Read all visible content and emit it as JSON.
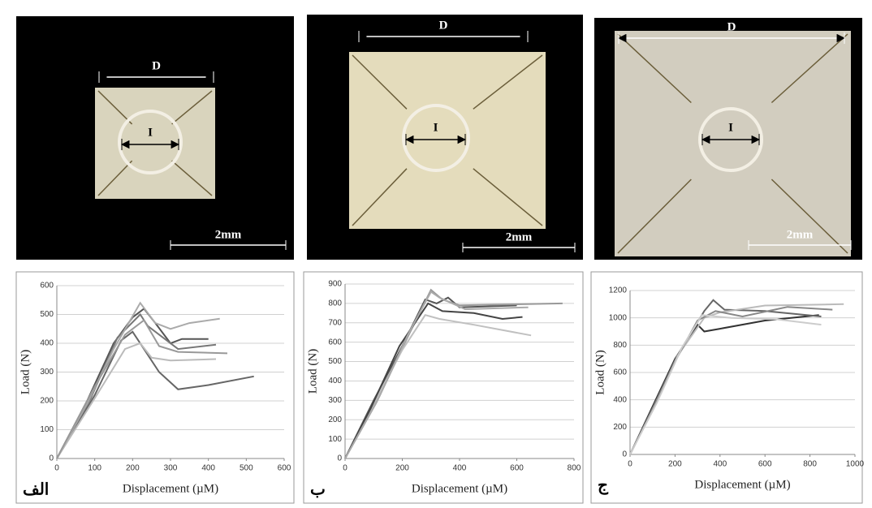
{
  "chart_data": [
    {
      "type": "line",
      "panel_label": "الف",
      "xlabel": "Displacement (µM)",
      "ylabel": "Load (N)",
      "xlim": [
        0,
        600
      ],
      "xticks": [
        0,
        100,
        200,
        300,
        400,
        500,
        600
      ],
      "ylim": [
        0,
        600
      ],
      "yticks": [
        0,
        100,
        200,
        300,
        400,
        500,
        600
      ],
      "grid": true,
      "series": [
        {
          "color": "#555555",
          "x": [
            0,
            80,
            150,
            200,
            230,
            260,
            300,
            330,
            400
          ],
          "values": [
            0,
            200,
            400,
            490,
            520,
            470,
            400,
            415,
            415
          ]
        },
        {
          "color": "#777777",
          "x": [
            0,
            90,
            160,
            220,
            240,
            280,
            320,
            420
          ],
          "values": [
            0,
            210,
            420,
            500,
            460,
            420,
            380,
            395
          ]
        },
        {
          "color": "#666666",
          "x": [
            0,
            100,
            170,
            200,
            230,
            270,
            320,
            400,
            520
          ],
          "values": [
            0,
            220,
            410,
            440,
            380,
            300,
            240,
            255,
            285
          ]
        },
        {
          "color": "#aaaaaa",
          "x": [
            0,
            80,
            150,
            220,
            260,
            300,
            350,
            430
          ],
          "values": [
            0,
            190,
            380,
            540,
            470,
            450,
            470,
            485
          ]
        },
        {
          "color": "#bbbbbb",
          "x": [
            0,
            110,
            180,
            220,
            250,
            300,
            420
          ],
          "values": [
            0,
            230,
            380,
            400,
            350,
            340,
            345
          ]
        },
        {
          "color": "#999999",
          "x": [
            0,
            100,
            180,
            230,
            270,
            320,
            450
          ],
          "values": [
            0,
            250,
            430,
            480,
            390,
            370,
            365
          ]
        }
      ]
    },
    {
      "type": "line",
      "panel_label": "ب",
      "xlabel": "Displacement (µM)",
      "ylabel": "Load (N)",
      "xlim": [
        0,
        800
      ],
      "xticks": [
        0,
        200,
        400,
        600,
        800
      ],
      "ylim": [
        0,
        900
      ],
      "yticks": [
        0,
        100,
        200,
        300,
        400,
        500,
        600,
        700,
        800,
        900
      ],
      "grid": true,
      "series": [
        {
          "color": "#555555",
          "x": [
            0,
            100,
            200,
            280,
            320,
            360,
            400,
            600
          ],
          "values": [
            0,
            300,
            580,
            820,
            800,
            830,
            780,
            790
          ]
        },
        {
          "color": "#999999",
          "x": [
            0,
            110,
            210,
            300,
            340,
            400,
            760
          ],
          "values": [
            0,
            290,
            600,
            870,
            820,
            790,
            800
          ]
        },
        {
          "color": "#c0c0c0",
          "x": [
            0,
            100,
            200,
            280,
            330,
            450,
            650
          ],
          "values": [
            0,
            280,
            560,
            740,
            720,
            690,
            635
          ]
        },
        {
          "color": "#444444",
          "x": [
            0,
            90,
            190,
            290,
            340,
            450,
            550,
            620
          ],
          "values": [
            0,
            260,
            580,
            800,
            760,
            750,
            720,
            730
          ]
        },
        {
          "color": "#aaaaaa",
          "x": [
            0,
            120,
            220,
            300,
            330,
            420,
            640
          ],
          "values": [
            0,
            320,
            640,
            860,
            830,
            770,
            780
          ]
        }
      ]
    },
    {
      "type": "line",
      "panel_label": "ج",
      "xlabel": "Displacement (µM)",
      "ylabel": "Load (N)",
      "xlim": [
        0,
        1000
      ],
      "xticks": [
        0,
        200,
        400,
        600,
        800,
        1000
      ],
      "ylim": [
        0,
        1200
      ],
      "yticks": [
        0,
        200,
        400,
        600,
        800,
        1000,
        1200
      ],
      "grid": true,
      "series": [
        {
          "color": "#333333",
          "x": [
            0,
            100,
            200,
            300,
            330,
            400,
            600,
            840
          ],
          "values": [
            0,
            350,
            700,
            950,
            900,
            920,
            980,
            1020
          ]
        },
        {
          "color": "#666666",
          "x": [
            0,
            110,
            220,
            330,
            370,
            420,
            600,
            850
          ],
          "values": [
            0,
            360,
            750,
            1050,
            1130,
            1060,
            1050,
            1010
          ]
        },
        {
          "color": "#bbbbbb",
          "x": [
            0,
            100,
            210,
            330,
            400,
            600,
            950
          ],
          "values": [
            0,
            330,
            720,
            1000,
            1040,
            1090,
            1100
          ]
        },
        {
          "color": "#888888",
          "x": [
            0,
            90,
            200,
            300,
            380,
            500,
            700,
            900
          ],
          "values": [
            0,
            300,
            680,
            980,
            1050,
            1010,
            1080,
            1060
          ]
        },
        {
          "color": "#cccccc",
          "x": [
            0,
            120,
            230,
            320,
            450,
            650,
            850
          ],
          "values": [
            0,
            380,
            780,
            1020,
            1000,
            990,
            950
          ]
        }
      ]
    }
  ],
  "photos": [
    {
      "dimension": "D",
      "hole": "I",
      "scale_bar": "2mm"
    },
    {
      "dimension": "D",
      "hole": "I",
      "scale_bar": "2mm"
    },
    {
      "dimension": "D",
      "hole": "I",
      "scale_bar": "2mm"
    }
  ]
}
